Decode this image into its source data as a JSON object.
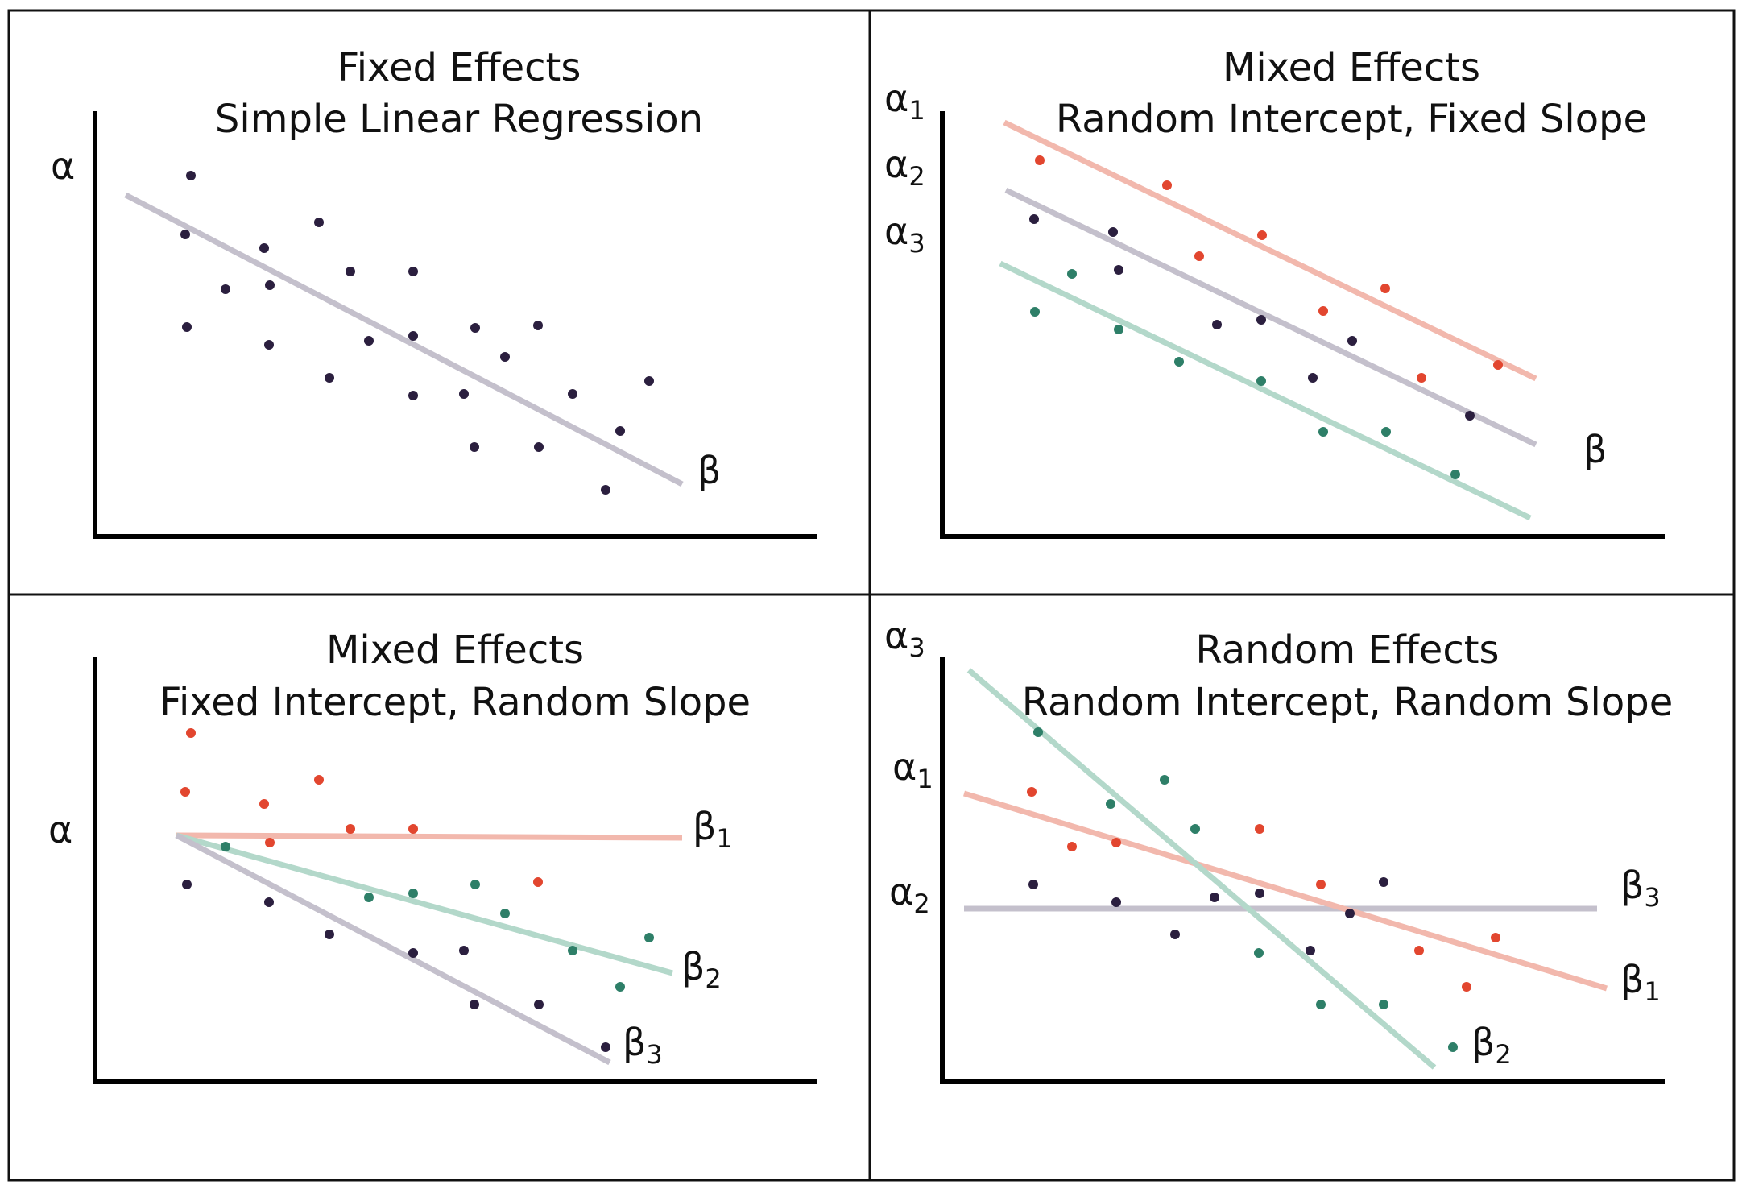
{
  "colors": {
    "dark": "#2b1f3f",
    "red": "#e2462f",
    "green": "#2e7f68",
    "line_gray": "#c4c0cc",
    "line_red": "#f2b8ad",
    "line_green": "#b3d8ca"
  },
  "panels": [
    {
      "id": "fixed-effects",
      "title_line1": "Fixed Effects",
      "title_line2": "Simple Linear Regression",
      "labels": [
        {
          "name": "alpha-label",
          "base": "α",
          "sub": ""
        },
        {
          "name": "beta-label",
          "base": "β",
          "sub": ""
        }
      ]
    },
    {
      "id": "random-intercept",
      "title_line1": "Mixed Effects",
      "title_line2": "Random Intercept, Fixed Slope",
      "labels": [
        {
          "name": "alpha1-label",
          "base": "α",
          "sub": "1"
        },
        {
          "name": "alpha2-label",
          "base": "α",
          "sub": "2"
        },
        {
          "name": "alpha3-label",
          "base": "α",
          "sub": "3"
        },
        {
          "name": "beta-label",
          "base": "β",
          "sub": ""
        }
      ]
    },
    {
      "id": "random-slope",
      "title_line1": "Mixed Effects",
      "title_line2": "Fixed Intercept, Random Slope",
      "labels": [
        {
          "name": "alpha-label",
          "base": "α",
          "sub": ""
        },
        {
          "name": "beta1-label",
          "base": "β",
          "sub": "1"
        },
        {
          "name": "beta2-label",
          "base": "β",
          "sub": "2"
        },
        {
          "name": "beta3-label",
          "base": "β",
          "sub": "3"
        }
      ]
    },
    {
      "id": "random-effects",
      "title_line1": "Random Effects",
      "title_line2": "Random Intercept, Random Slope",
      "labels": [
        {
          "name": "alpha3-label",
          "base": "α",
          "sub": "3"
        },
        {
          "name": "alpha1-label",
          "base": "α",
          "sub": "1"
        },
        {
          "name": "alpha2-label",
          "base": "α",
          "sub": "2"
        },
        {
          "name": "beta3-label",
          "base": "β",
          "sub": "3"
        },
        {
          "name": "beta1-label",
          "base": "β",
          "sub": "1"
        },
        {
          "name": "beta2-label",
          "base": "β",
          "sub": "2"
        }
      ]
    }
  ]
}
